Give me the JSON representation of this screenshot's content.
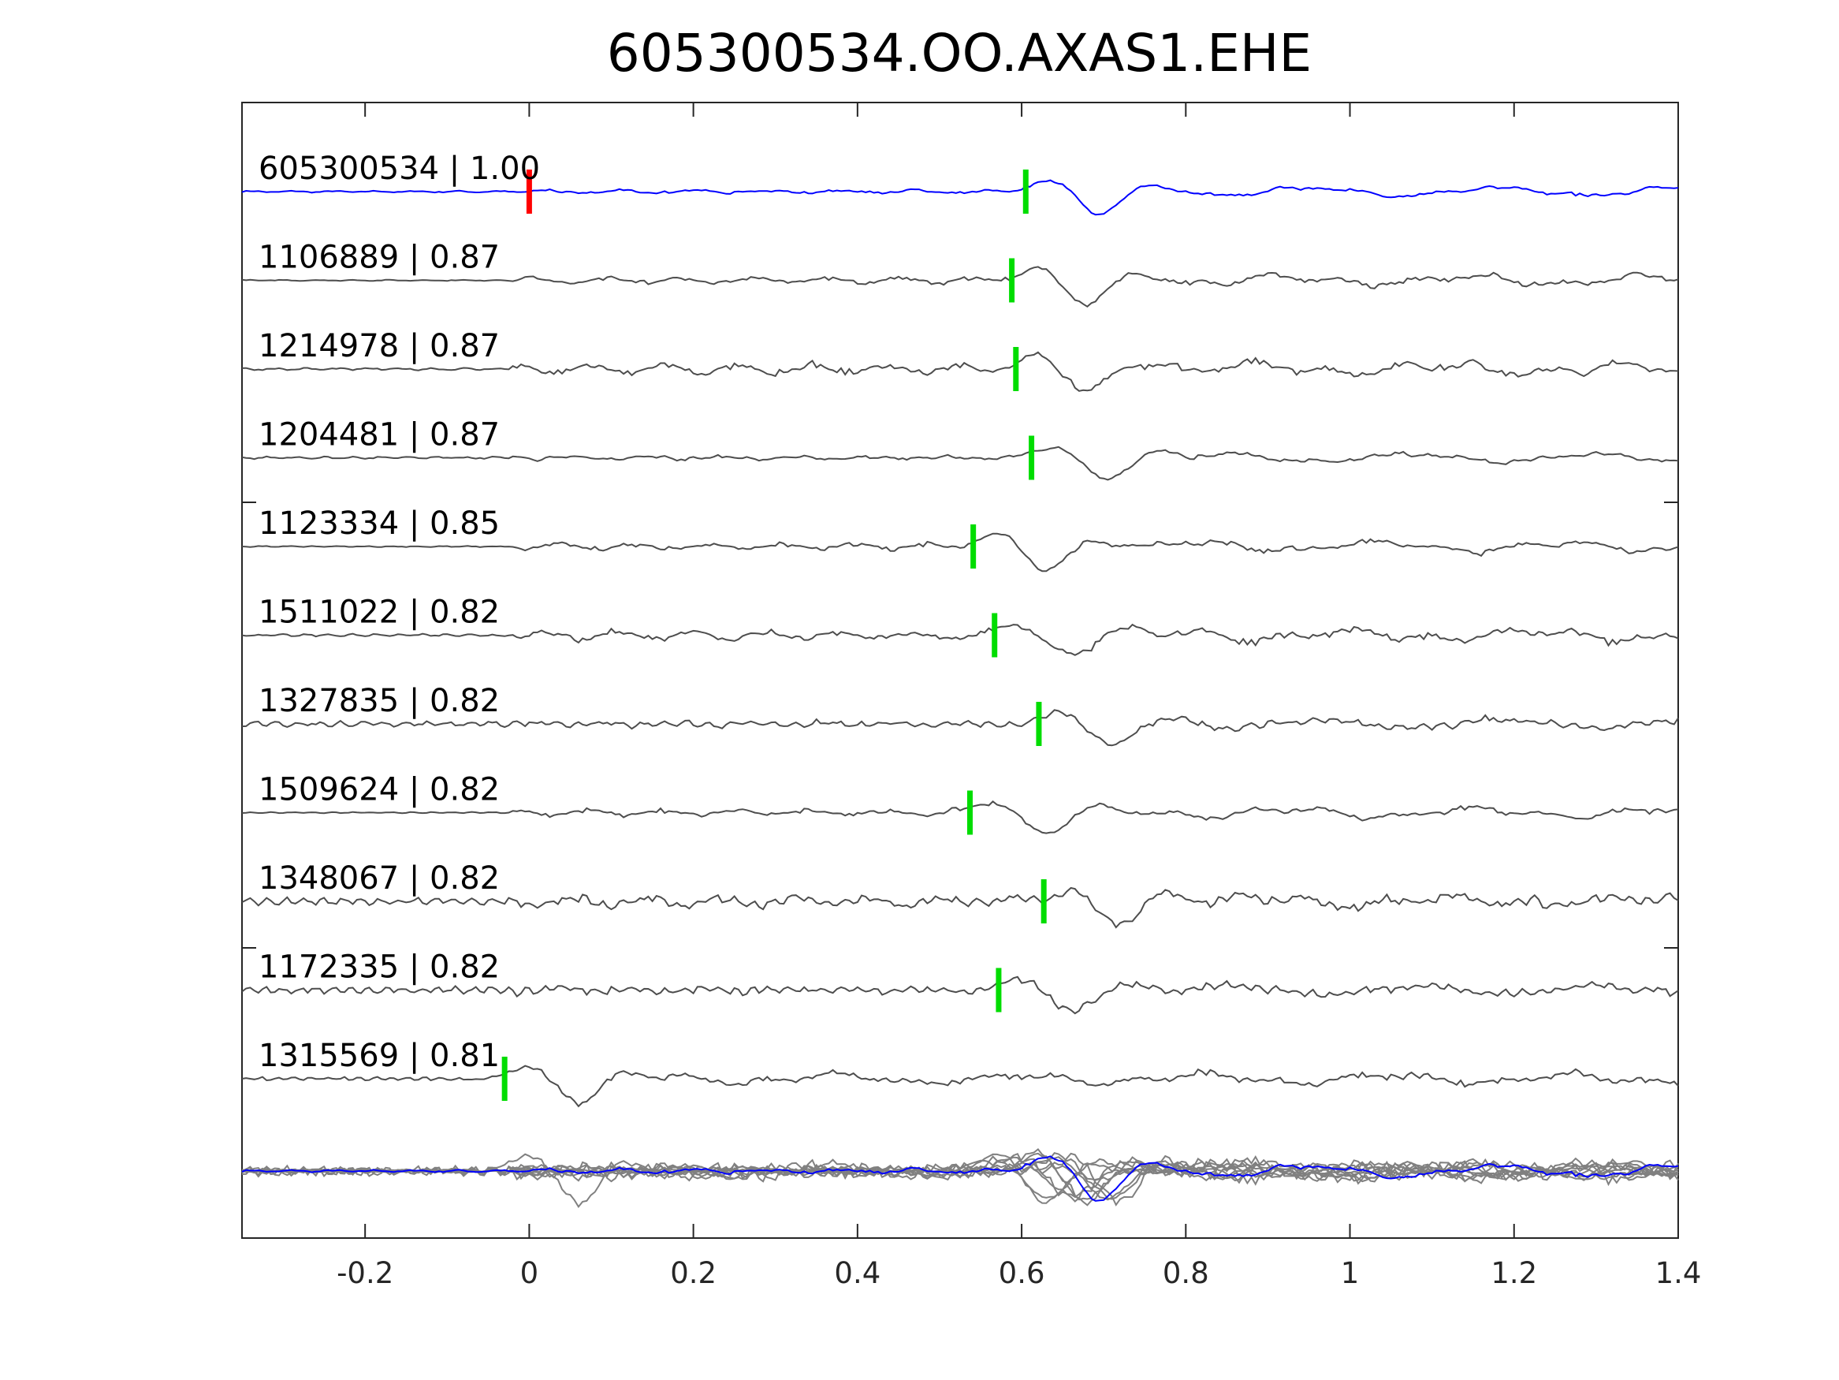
{
  "chart_data": {
    "type": "line",
    "title": "605300534.OO.AXAS1.EHE",
    "xlabel": "",
    "ylabel": "",
    "xlim": [
      -0.35,
      1.4
    ],
    "xticks": [
      -0.2,
      0,
      0.2,
      0.4,
      0.6,
      0.8,
      1,
      1.2,
      1.4
    ],
    "xtick_labels": [
      "-0.2",
      "0",
      "0.2",
      "0.4",
      "0.6",
      "0.8",
      "1",
      "1.2",
      "1.4"
    ],
    "grid": false,
    "colors": {
      "reference": "#0000ff",
      "trace": "#4d4d4d",
      "stack": "#808080",
      "ref_pick": "#ff0000",
      "pick": "#00dd00"
    },
    "reference_pick_time": 0,
    "traces": [
      {
        "id": "605300534",
        "cc": "1.00",
        "label": "605300534 | 1.00",
        "pick_time": 0.605,
        "reference": true
      },
      {
        "id": "1106889",
        "cc": "0.87",
        "label": "1106889 | 0.87",
        "pick_time": 0.588
      },
      {
        "id": "1214978",
        "cc": "0.87",
        "label": "1214978 | 0.87",
        "pick_time": 0.593
      },
      {
        "id": "1204481",
        "cc": "0.87",
        "label": "1204481 | 0.87",
        "pick_time": 0.612
      },
      {
        "id": "1123334",
        "cc": "0.85",
        "label": "1123334 | 0.85",
        "pick_time": 0.541
      },
      {
        "id": "1511022",
        "cc": "0.82",
        "label": "1511022 | 0.82",
        "pick_time": 0.567
      },
      {
        "id": "1327835",
        "cc": "0.82",
        "label": "1327835 | 0.82",
        "pick_time": 0.621
      },
      {
        "id": "1509624",
        "cc": "0.82",
        "label": "1509624 | 0.82",
        "pick_time": 0.537
      },
      {
        "id": "1348067",
        "cc": "0.82",
        "label": "1348067 | 0.82",
        "pick_time": 0.627
      },
      {
        "id": "1172335",
        "cc": "0.82",
        "label": "1172335 | 0.82",
        "pick_time": 0.572
      },
      {
        "id": "1315569",
        "cc": "0.81",
        "label": "1315569 | 0.81",
        "pick_time": -0.03
      }
    ]
  }
}
